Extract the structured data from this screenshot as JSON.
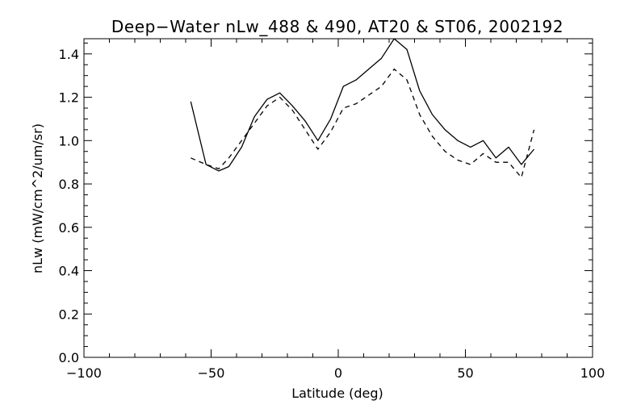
{
  "chart_data": {
    "type": "line",
    "title": "Deep−Water nLw_488 & 490, AT20 & ST06, 2002192",
    "xlabel": "Latitude (deg)",
    "ylabel": "nLw (mW/cm^2/um/sr)",
    "xlim": [
      -100,
      100
    ],
    "ylim": [
      0.0,
      1.47
    ],
    "x_ticks": [
      -100,
      -50,
      0,
      50,
      100
    ],
    "x_tick_labels": [
      "−100",
      "−50",
      "0",
      "50",
      "100"
    ],
    "y_ticks": [
      0.0,
      0.2,
      0.4,
      0.6,
      0.8,
      1.0,
      1.2,
      1.4
    ],
    "y_tick_labels": [
      "0.0",
      "0.2",
      "0.4",
      "0.6",
      "0.8",
      "1.0",
      "1.2",
      "1.4"
    ],
    "grid": false,
    "series": [
      {
        "style": "solid",
        "x": [
          -58,
          -52,
          -47,
          -43,
          -38,
          -33,
          -28,
          -23,
          -18,
          -13,
          -8,
          -3,
          2,
          7,
          12,
          17,
          22,
          27,
          32,
          37,
          42,
          47,
          52,
          57,
          62,
          67,
          72,
          77
        ],
        "y": [
          1.18,
          0.89,
          0.86,
          0.88,
          0.97,
          1.11,
          1.19,
          1.22,
          1.16,
          1.09,
          1.0,
          1.1,
          1.25,
          1.28,
          1.33,
          1.38,
          1.47,
          1.42,
          1.23,
          1.12,
          1.05,
          1.0,
          0.97,
          1.0,
          0.92,
          0.97,
          0.89,
          0.96
        ]
      },
      {
        "style": "dashed",
        "x": [
          -58,
          -52,
          -47,
          -43,
          -38,
          -33,
          -28,
          -23,
          -18,
          -13,
          -8,
          -3,
          2,
          7,
          12,
          17,
          22,
          27,
          32,
          37,
          42,
          47,
          52,
          57,
          62,
          67,
          72,
          77
        ],
        "y": [
          0.92,
          0.89,
          0.87,
          0.92,
          1.0,
          1.08,
          1.16,
          1.2,
          1.14,
          1.05,
          0.96,
          1.04,
          1.15,
          1.17,
          1.21,
          1.25,
          1.33,
          1.28,
          1.12,
          1.02,
          0.95,
          0.91,
          0.89,
          0.94,
          0.9,
          0.9,
          0.83,
          1.05
        ]
      }
    ]
  }
}
